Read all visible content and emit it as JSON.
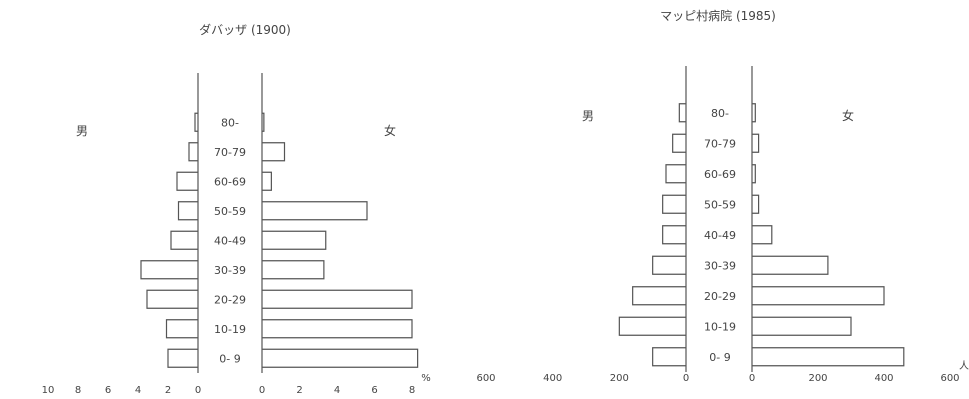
{
  "chart_data": [
    {
      "type": "bar",
      "orientation": "horizontal",
      "subtype": "population-pyramid",
      "title": "ダバッザ (1900)",
      "categories": [
        "0- 9",
        "10-19",
        "20-29",
        "30-39",
        "40-49",
        "50-59",
        "60-69",
        "70-79",
        "80-"
      ],
      "series": [
        {
          "name": "男",
          "values": [
            2,
            2.1,
            3.4,
            3.8,
            1.8,
            1.3,
            1.4,
            0.6,
            0.2
          ]
        },
        {
          "name": "女",
          "values": [
            8.3,
            8,
            8,
            3.3,
            3.4,
            5.6,
            0.5,
            1.2,
            0.1
          ]
        }
      ],
      "left_xlim": [
        0,
        10
      ],
      "right_xlim": [
        0,
        8
      ],
      "left_ticks": [
        "10",
        "8",
        "6",
        "4",
        "2",
        "0"
      ],
      "right_ticks": [
        "0",
        "2",
        "4",
        "6",
        "8"
      ],
      "right_unit": "%"
    },
    {
      "type": "bar",
      "orientation": "horizontal",
      "subtype": "population-pyramid",
      "title": "マッピ村病院 (1985)",
      "categories": [
        "0- 9",
        "10-19",
        "20-29",
        "30-39",
        "40-49",
        "50-59",
        "60-69",
        "70-79",
        "80-"
      ],
      "series": [
        {
          "name": "男",
          "values": [
            100,
            200,
            160,
            100,
            70,
            70,
            60,
            40,
            20
          ]
        },
        {
          "name": "女",
          "values": [
            460,
            300,
            400,
            230,
            60,
            20,
            10,
            20,
            10
          ]
        }
      ],
      "left_xlim": [
        0,
        600
      ],
      "right_xlim": [
        0,
        600
      ],
      "left_ticks": [
        "600",
        "400",
        "200",
        "0"
      ],
      "right_ticks": [
        "0",
        "200",
        "400",
        "600"
      ],
      "right_unit": "人"
    }
  ]
}
